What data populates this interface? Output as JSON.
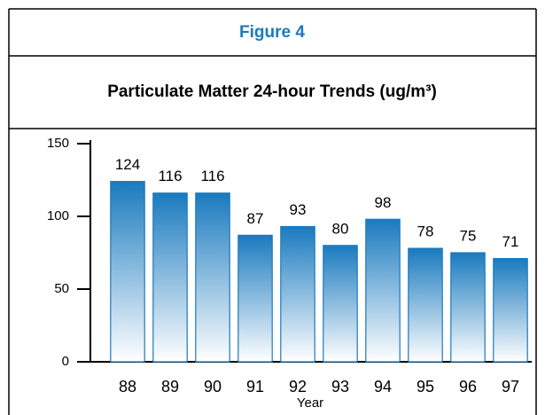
{
  "chart_data": {
    "type": "bar",
    "figure_label": "Figure 4",
    "title": "Particulate Matter 24-hour Trends (ug/m³)",
    "x_label": "Year",
    "categories": [
      "88",
      "89",
      "90",
      "91",
      "92",
      "93",
      "94",
      "95",
      "96",
      "97"
    ],
    "values": [
      124,
      116,
      116,
      87,
      93,
      80,
      98,
      78,
      75,
      71
    ],
    "color": "#1a7abf",
    "ylim": [
      0,
      150
    ],
    "yticks": [
      0,
      50,
      100,
      150
    ]
  }
}
